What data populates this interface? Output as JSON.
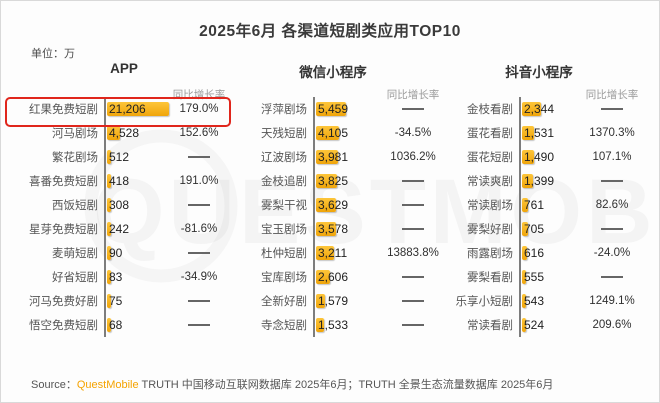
{
  "title": "2025年6月 各渠道短剧类应用TOP10",
  "unit_label": "单位：万",
  "growth_header": "同比增长率",
  "watermark": "QUESTMOBILE",
  "accent_colors": {
    "bar": "#F5AF1A",
    "highlight_box": "#E0261C",
    "brand_orange": "#F5A300"
  },
  "footer": {
    "source_label": "Source：",
    "brand": "QuestMobile",
    "text": " TRUTH 中国移动互联网数据库 2025年6月；TRUTH 全景生态流量数据库 2025年6月"
  },
  "sections": [
    {
      "header": "APP",
      "rows": [
        {
          "name": "红果免费短剧",
          "value": "21,206",
          "growth": "179.0%",
          "highlight": true
        },
        {
          "name": "河马剧场",
          "value": "4,528",
          "growth": "152.6%"
        },
        {
          "name": "繁花剧场",
          "value": "512",
          "growth": "—"
        },
        {
          "name": "喜番免费短剧",
          "value": "418",
          "growth": "191.0%"
        },
        {
          "name": "西饭短剧",
          "value": "308",
          "growth": "—"
        },
        {
          "name": "星芽免费短剧",
          "value": "242",
          "growth": "-81.6%"
        },
        {
          "name": "麦萌短剧",
          "value": "90",
          "growth": "—"
        },
        {
          "name": "好省短剧",
          "value": "83",
          "growth": "-34.9%"
        },
        {
          "name": "河马免费好剧",
          "value": "75",
          "growth": "—"
        },
        {
          "name": "悟空免费短剧",
          "value": "68",
          "growth": "—"
        }
      ]
    },
    {
      "header": "微信小程序",
      "rows": [
        {
          "name": "浮萍剧场",
          "value": "5,459",
          "growth": "—"
        },
        {
          "name": "天残短剧",
          "value": "4,105",
          "growth": "-34.5%"
        },
        {
          "name": "辽波剧场",
          "value": "3,981",
          "growth": "1036.2%"
        },
        {
          "name": "金枝追剧",
          "value": "3,825",
          "growth": "—"
        },
        {
          "name": "雾梨干视",
          "value": "3,629",
          "growth": "—"
        },
        {
          "name": "宝玉剧场",
          "value": "3,578",
          "growth": "—"
        },
        {
          "name": "杜仲短剧",
          "value": "3,211",
          "growth": "13883.8%"
        },
        {
          "name": "宝库剧场",
          "value": "2,606",
          "growth": "—"
        },
        {
          "name": "全新好剧",
          "value": "1,579",
          "growth": "—"
        },
        {
          "name": "寺念短剧",
          "value": "1,533",
          "growth": "—"
        }
      ]
    },
    {
      "header": "抖音小程序",
      "rows": [
        {
          "name": "金枝看剧",
          "value": "2,344",
          "growth": "—"
        },
        {
          "name": "蛋花看剧",
          "value": "1,531",
          "growth": "1370.3%"
        },
        {
          "name": "蛋花短剧",
          "value": "1,490",
          "growth": "107.1%"
        },
        {
          "name": "常读爽剧",
          "value": "1,399",
          "growth": "—"
        },
        {
          "name": "常读剧场",
          "value": "761",
          "growth": "82.6%"
        },
        {
          "name": "雾梨好剧",
          "value": "705",
          "growth": "—"
        },
        {
          "name": "雨露剧场",
          "value": "616",
          "growth": "-24.0%"
        },
        {
          "name": "雾梨看剧",
          "value": "555",
          "growth": "—"
        },
        {
          "name": "乐享小短剧",
          "value": "543",
          "growth": "1249.1%"
        },
        {
          "name": "常读看剧",
          "value": "524",
          "growth": "209.6%"
        }
      ]
    }
  ],
  "chart_data": [
    {
      "type": "bar",
      "title": "APP",
      "categories": [
        "红果免费短剧",
        "河马剧场",
        "繁花剧场",
        "喜番免费短剧",
        "西饭短剧",
        "星芽免费短剧",
        "麦萌短剧",
        "好省短剧",
        "河马免费好剧",
        "悟空免费短剧"
      ],
      "values": [
        21206,
        4528,
        512,
        418,
        308,
        242,
        90,
        83,
        75,
        68
      ],
      "yoy_growth_pct": [
        179.0,
        152.6,
        null,
        191.0,
        null,
        -81.6,
        null,
        -34.9,
        null,
        null
      ],
      "xlabel": "",
      "ylabel": "单位：万",
      "orientation": "horizontal",
      "grid": false,
      "legend": false
    },
    {
      "type": "bar",
      "title": "微信小程序",
      "categories": [
        "浮萍剧场",
        "天残短剧",
        "辽波剧场",
        "金枝追剧",
        "雾梨干视",
        "宝玉剧场",
        "杜仲短剧",
        "宝库剧场",
        "全新好剧",
        "寺念短剧"
      ],
      "values": [
        5459,
        4105,
        3981,
        3825,
        3629,
        3578,
        3211,
        2606,
        1579,
        1533
      ],
      "yoy_growth_pct": [
        null,
        -34.5,
        1036.2,
        null,
        null,
        null,
        13883.8,
        null,
        null,
        null
      ],
      "xlabel": "",
      "ylabel": "单位：万",
      "orientation": "horizontal",
      "grid": false,
      "legend": false
    },
    {
      "type": "bar",
      "title": "抖音小程序",
      "categories": [
        "金枝看剧",
        "蛋花看剧",
        "蛋花短剧",
        "常读爽剧",
        "常读剧场",
        "雾梨好剧",
        "雨露剧场",
        "雾梨看剧",
        "乐享小短剧",
        "常读看剧"
      ],
      "values": [
        2344,
        1531,
        1490,
        1399,
        761,
        705,
        616,
        555,
        543,
        524
      ],
      "yoy_growth_pct": [
        null,
        1370.3,
        107.1,
        null,
        82.6,
        null,
        -24.0,
        null,
        1249.1,
        209.6
      ],
      "xlabel": "",
      "ylabel": "单位：万",
      "orientation": "horizontal",
      "grid": false,
      "legend": false
    }
  ]
}
